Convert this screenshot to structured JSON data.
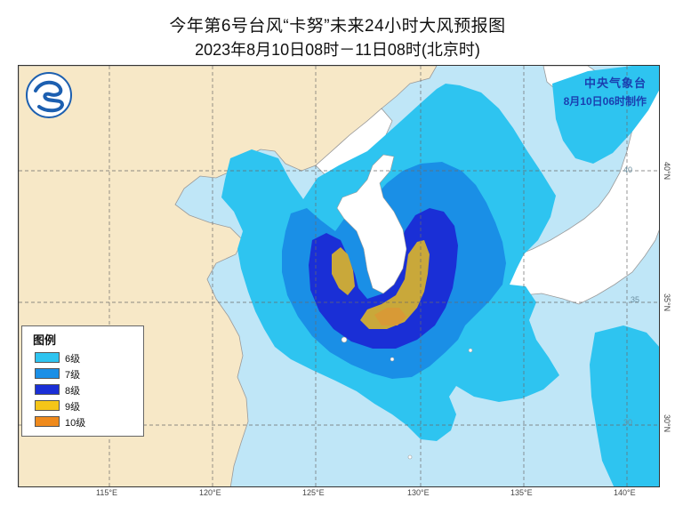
{
  "title": {
    "main": "今年第6号台风“卡努”未来24小时大风预报图",
    "sub": "2023年8月10日08时－11日08时(北京时)"
  },
  "agency": {
    "name": "中央气象台",
    "issue_time": "8月10日06时制作"
  },
  "legend": {
    "title": "图例",
    "items": [
      {
        "label": "6级",
        "color": "#2ec4f0"
      },
      {
        "label": "7级",
        "color": "#1a8fe6"
      },
      {
        "label": "8级",
        "color": "#1a2fd6"
      },
      {
        "label": "9级",
        "color": "#f5c518"
      },
      {
        "label": "10级",
        "color": "#ef8a1c"
      }
    ]
  },
  "axes": {
    "longitudes": [
      "115°E",
      "120°E",
      "125°E",
      "130°E",
      "135°E",
      "140°E"
    ],
    "latitudes": [
      "40°N",
      "35°N",
      "30°N"
    ],
    "inline_lat": [
      "40",
      "35",
      "30"
    ]
  },
  "colors": {
    "sea": "#bfe6f7",
    "land": "#f7e8c7",
    "land_border": "#9a9a9a",
    "logo": "#1c5fb0"
  }
}
